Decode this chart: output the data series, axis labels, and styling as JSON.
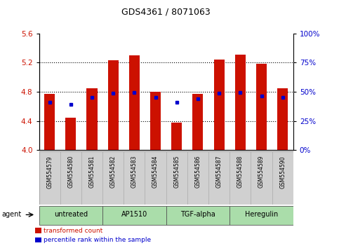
{
  "title": "GDS4361 / 8071063",
  "samples": [
    "GSM554579",
    "GSM554580",
    "GSM554581",
    "GSM554582",
    "GSM554583",
    "GSM554584",
    "GSM554585",
    "GSM554586",
    "GSM554587",
    "GSM554588",
    "GSM554589",
    "GSM554590"
  ],
  "bar_values": [
    4.77,
    4.44,
    4.85,
    5.23,
    5.3,
    4.8,
    4.38,
    4.77,
    5.24,
    5.31,
    5.18,
    4.85
  ],
  "percentile_values": [
    4.655,
    4.63,
    4.72,
    4.785,
    4.792,
    4.72,
    4.66,
    4.7,
    4.785,
    4.792,
    4.745,
    4.72
  ],
  "bar_bottom": 4.0,
  "ylim_left": [
    4.0,
    5.6
  ],
  "ylim_right": [
    0,
    100
  ],
  "yticks_left": [
    4.0,
    4.4,
    4.8,
    5.2,
    5.6
  ],
  "yticks_right": [
    0,
    25,
    50,
    75,
    100
  ],
  "ytick_labels_right": [
    "0%",
    "25%",
    "50%",
    "75%",
    "100%"
  ],
  "bar_color": "#cc1100",
  "percentile_color": "#0000cc",
  "agent_groups": [
    {
      "label": "untreated",
      "start": 0,
      "end": 3
    },
    {
      "label": "AP1510",
      "start": 3,
      "end": 6
    },
    {
      "label": "TGF-alpha",
      "start": 6,
      "end": 9
    },
    {
      "label": "Heregulin",
      "start": 9,
      "end": 12
    }
  ],
  "agent_bg_color": "#aaddaa",
  "bar_width": 0.5,
  "legend_items": [
    {
      "label": "transformed count",
      "color": "#cc1100"
    },
    {
      "label": "percentile rank within the sample",
      "color": "#0000cc"
    }
  ],
  "sample_label_bg": "#d0d0d0",
  "agent_arrow_label": "agent",
  "dotted_lines": [
    4.4,
    4.8,
    5.2
  ],
  "right_label_color": "#0000cc",
  "left_label_color": "#cc1100"
}
